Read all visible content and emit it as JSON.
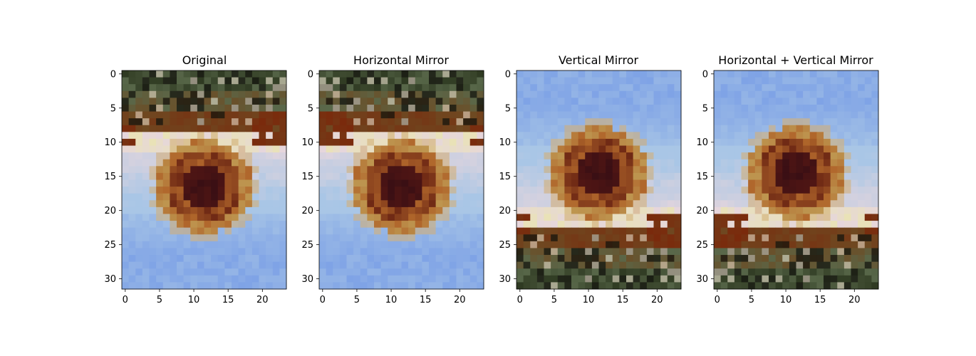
{
  "figure": {
    "background": "#ffffff",
    "panels": [
      {
        "title": "Original",
        "transform": "none"
      },
      {
        "title": "Horizontal Mirror",
        "transform": "flip-horizontal"
      },
      {
        "title": "Vertical Mirror",
        "transform": "flip-vertical"
      },
      {
        "title": "Horizontal + Vertical Mirror",
        "transform": "flip-both"
      }
    ]
  },
  "chart_data": {
    "type": "heatmap",
    "image_rows": 32,
    "image_cols": 24,
    "x_ticks": [
      "0",
      "5",
      "10",
      "15",
      "20"
    ],
    "y_ticks": [
      "0",
      "5",
      "10",
      "15",
      "20",
      "25",
      "30"
    ],
    "description_colors": {
      "top_dark": "#2f3a22",
      "top_green": "#59684a",
      "brown": "#6e4a22",
      "rust": "#7a2a0c",
      "cream": "#e9e2b7",
      "pink": "#e6d6dc",
      "sky": "#a9c6e6",
      "blue": "#7fa3e6",
      "center_dark": "#3a0f14",
      "petal_orange": "#b0662b"
    }
  }
}
